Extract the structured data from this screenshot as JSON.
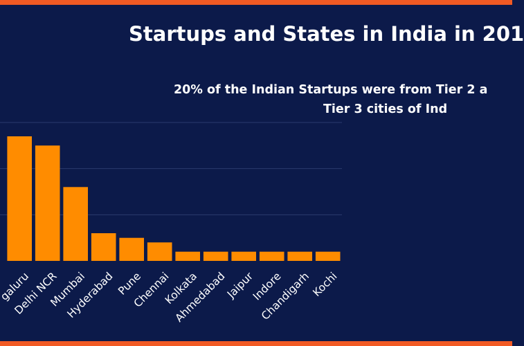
{
  "colors": {
    "background": "#0c1a4a",
    "bar": "#ff8c00",
    "accent_frame": "#f15a24",
    "grid": "#2a3a6e",
    "text": "#ffffff"
  },
  "header": {
    "title": "Startups and States in India in 201",
    "subtitle_line1": "20% of the Indian Startups were from Tier 2 a",
    "subtitle_line2": "Tier 3 cities of Ind"
  },
  "chart_data": {
    "type": "bar",
    "title": "Startups and States in India in 201",
    "categories": [
      "galuru",
      "Delhi NCR",
      "Mumbai",
      "Hyderabad",
      "Pune",
      "Chennai",
      "Kolkata",
      "Ahmedabad",
      "Jaipur",
      "Indore",
      "Chandigarh",
      "Kochi"
    ],
    "values": [
      27,
      25,
      16,
      6,
      5,
      4,
      2,
      2,
      2,
      2,
      2,
      2
    ],
    "xlabel": "",
    "ylabel": "",
    "ylim": [
      0,
      30
    ],
    "grid": true,
    "gridlines": [
      10,
      20,
      30
    ]
  }
}
